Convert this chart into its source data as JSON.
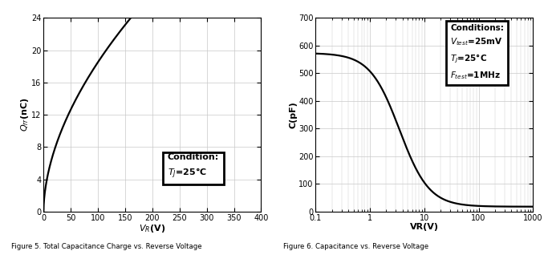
{
  "fig5": {
    "title": "Figure 5. Total Capacitance Charge vs. Reverse Voltage",
    "xlabel_parts": [
      "$V$",
      "$_R$",
      "(V)"
    ],
    "ylabel_parts": [
      "$Q$",
      "_{rr}",
      "(nC)"
    ],
    "xlim": [
      0,
      400
    ],
    "ylim": [
      0,
      24
    ],
    "xticks": [
      0,
      50,
      100,
      150,
      200,
      250,
      300,
      350,
      400
    ],
    "yticks": [
      0,
      4,
      8,
      12,
      16,
      20,
      24
    ],
    "curve_color": "#000000",
    "grid_color": "#c8c8c8",
    "curve_A": 1.47,
    "curve_exp": 0.55
  },
  "fig6": {
    "title": "Figure 6. Capacitance vs. Reverse Voltage",
    "xlabel": "VR(V)",
    "ylabel": "C(pF)",
    "xlim_log": [
      -1,
      3
    ],
    "ylim": [
      0,
      700
    ],
    "yticks": [
      0,
      100,
      200,
      300,
      400,
      500,
      600,
      700
    ],
    "xtick_vals": [
      0.1,
      1,
      10,
      100,
      1000
    ],
    "xtick_labels": [
      "0.1",
      "1",
      "10",
      "100",
      "1000"
    ],
    "curve_color": "#000000",
    "grid_color": "#c8c8c8",
    "C0": 555,
    "C_inf": 18,
    "V_knee": 3.5,
    "alpha": 1.6
  },
  "bg_color": "#ffffff",
  "line_width": 1.6
}
